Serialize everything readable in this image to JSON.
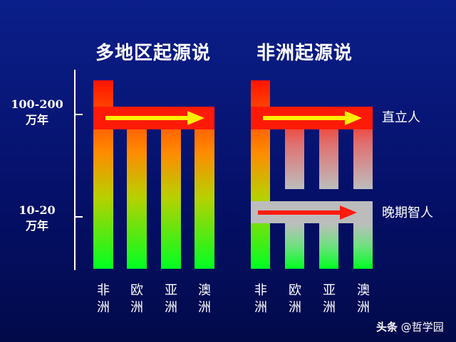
{
  "titles": {
    "left": "多地区起源说",
    "right": "非洲起源说"
  },
  "y_axis": {
    "label_high_1": "100-200",
    "label_high_2": "万年",
    "label_low_1": "10-20",
    "label_low_2": "万年"
  },
  "left_columns": [
    {
      "line1": "非",
      "line2": "洲"
    },
    {
      "line1": "欧",
      "line2": "洲"
    },
    {
      "line1": "亚",
      "line2": "洲"
    },
    {
      "line1": "澳",
      "line2": "洲"
    }
  ],
  "right_columns": [
    {
      "line1": "非",
      "line2": "洲"
    },
    {
      "line1": "欧",
      "line2": "洲"
    },
    {
      "line1": "亚",
      "line2": "洲"
    },
    {
      "line1": "澳",
      "line2": "洲"
    }
  ],
  "side_labels": {
    "upper": "直立人",
    "lower": "晚期智人"
  },
  "colors": {
    "background": "#05106a",
    "top_color": "#ff1a00",
    "bottom_color": "#00ff22",
    "arrow_yellow": "#ffee00",
    "arrow_red": "#ff1a10",
    "band_gray": "#b8b8b8",
    "text": "#ffffff"
  },
  "watermark": {
    "logo": "头条",
    "handle": "@哲学园"
  }
}
